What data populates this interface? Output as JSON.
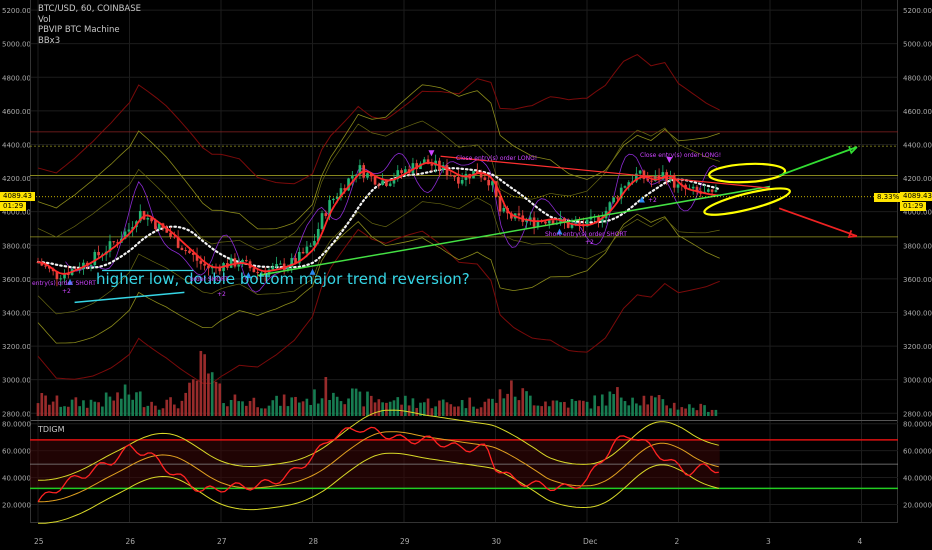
{
  "legend": {
    "symbol": "BTC/USD, 60, COINBASE",
    "vol": "Vol",
    "strategy": "PBVIP BTC Machine",
    "bands": "BBx3"
  },
  "oscillator": {
    "name": "TDIGM"
  },
  "annotations": {
    "main": "higher low, double bottom major trend reversion?",
    "close_long_1": "Close entry(s) order LONG!",
    "close_long_2": "Close entry(s) order LONG!",
    "short_1": "entry(s) order SHORT",
    "short_2": "Short entry(s) order SHORT",
    "short_3": "order SHORT",
    "plus2_a": "+2",
    "plus2_b": "+2",
    "plus2_c": "+2",
    "plus2_d": "+2"
  },
  "price_badges": {
    "last_price": "4089.43",
    "countdown_right": "01:29",
    "countdown_left": "01:29",
    "left_price": "4089.43",
    "pct": "8.33%"
  },
  "colors": {
    "background": "#000000",
    "grid": "#1c1c1c",
    "bull": "#22b573",
    "bear": "#e8413c",
    "fast_ma": "#ff2a2a",
    "slow_ma": "#f2f2f2",
    "band_outer": "#7a0a0a",
    "band_mid": "#8a8a1a",
    "trend_support": "#44e044",
    "trend_resist": "#ff3030",
    "annotation": "#36d6e6",
    "ellipse": "#ffff00",
    "arrow_up": "#33dd33",
    "arrow_down": "#ee2222",
    "osc_rsi": "#ff2222",
    "osc_band": "#d8d828",
    "osc_mid": "#e0a020",
    "osc_upper_level": "#dd1111",
    "osc_lower_level": "#22cc22"
  },
  "chart_data": {
    "type": "candlestick",
    "title": "BTC/USD, 60, COINBASE",
    "x_ticks": [
      "25",
      "26",
      "27",
      "28",
      "29",
      "30",
      "Dec",
      "2",
      "3",
      "4"
    ],
    "price_axis": {
      "ticks": [
        5200,
        5000,
        4800,
        4600,
        4400,
        4200,
        4000,
        3800,
        3600,
        3400,
        3200,
        3000,
        2800
      ],
      "tick_labels": [
        "5200.00",
        "5000.00",
        "4800.00",
        "4600.00",
        "4400.00",
        "4200.00",
        "4000.00",
        "3800.00",
        "3600.00",
        "3400.00",
        "3200.00",
        "3000.00",
        "2800.00"
      ],
      "range": [
        2760,
        5260
      ]
    },
    "oscillator_axis": {
      "ticks": [
        80,
        60,
        40,
        20
      ],
      "tick_labels": [
        "80.0000",
        "60.0000",
        "40.0000",
        "20.0000"
      ],
      "range": [
        7,
        82
      ],
      "levels": [
        68,
        50,
        32
      ]
    },
    "close_path": [
      [
        0,
        3700
      ],
      [
        0.2,
        3620
      ],
      [
        0.4,
        3660
      ],
      [
        0.6,
        3720
      ],
      [
        0.8,
        3800
      ],
      [
        1.0,
        3900
      ],
      [
        1.1,
        4000
      ],
      [
        1.2,
        3960
      ],
      [
        1.4,
        3880
      ],
      [
        1.6,
        3780
      ],
      [
        1.8,
        3680
      ],
      [
        1.9,
        3660
      ],
      [
        2.0,
        3680
      ],
      [
        2.2,
        3700
      ],
      [
        2.4,
        3640
      ],
      [
        2.6,
        3660
      ],
      [
        2.8,
        3700
      ],
      [
        3.0,
        3800
      ],
      [
        3.1,
        3960
      ],
      [
        3.2,
        4060
      ],
      [
        3.35,
        4160
      ],
      [
        3.5,
        4260
      ],
      [
        3.65,
        4200
      ],
      [
        3.8,
        4180
      ],
      [
        4.0,
        4240
      ],
      [
        4.2,
        4300
      ],
      [
        4.4,
        4260
      ],
      [
        4.6,
        4200
      ],
      [
        4.8,
        4240
      ],
      [
        4.95,
        4180
      ],
      [
        5.05,
        4000
      ],
      [
        5.2,
        3960
      ],
      [
        5.4,
        3940
      ],
      [
        5.6,
        3960
      ],
      [
        5.8,
        3920
      ],
      [
        6.0,
        3920
      ],
      [
        6.2,
        4000
      ],
      [
        6.4,
        4160
      ],
      [
        6.55,
        4220
      ],
      [
        6.7,
        4180
      ],
      [
        6.85,
        4230
      ],
      [
        7.0,
        4140
      ],
      [
        7.15,
        4120
      ],
      [
        7.3,
        4100
      ],
      [
        7.45,
        4095
      ]
    ],
    "volume_profile": [
      [
        0,
        0.35
      ],
      [
        0.3,
        0.25
      ],
      [
        0.7,
        0.3
      ],
      [
        1.0,
        0.45
      ],
      [
        1.3,
        0.25
      ],
      [
        1.6,
        0.28
      ],
      [
        1.8,
        1.0
      ],
      [
        2.0,
        0.4
      ],
      [
        2.3,
        0.3
      ],
      [
        2.6,
        0.28
      ],
      [
        3.0,
        0.35
      ],
      [
        3.2,
        0.6
      ],
      [
        3.5,
        0.35
      ],
      [
        4.0,
        0.3
      ],
      [
        4.5,
        0.25
      ],
      [
        5.0,
        0.3
      ],
      [
        5.1,
        0.55
      ],
      [
        5.5,
        0.3
      ],
      [
        6.0,
        0.25
      ],
      [
        6.4,
        0.45
      ],
      [
        7.0,
        0.2
      ],
      [
        7.4,
        0.15
      ]
    ],
    "oscillator_rsi": [
      [
        0,
        22
      ],
      [
        0.3,
        36
      ],
      [
        0.5,
        42
      ],
      [
        0.8,
        52
      ],
      [
        1.0,
        62
      ],
      [
        1.2,
        58
      ],
      [
        1.5,
        42
      ],
      [
        1.8,
        30
      ],
      [
        2.1,
        33
      ],
      [
        2.4,
        34
      ],
      [
        2.7,
        40
      ],
      [
        3.0,
        55
      ],
      [
        3.2,
        70
      ],
      [
        3.5,
        77
      ],
      [
        3.8,
        72
      ],
      [
        4.0,
        68
      ],
      [
        4.3,
        68
      ],
      [
        4.6,
        62
      ],
      [
        4.9,
        62
      ],
      [
        5.0,
        48
      ],
      [
        5.2,
        38
      ],
      [
        5.5,
        34
      ],
      [
        5.8,
        32
      ],
      [
        6.0,
        38
      ],
      [
        6.3,
        66
      ],
      [
        6.5,
        72
      ],
      [
        6.7,
        62
      ],
      [
        6.9,
        52
      ],
      [
        7.1,
        44
      ],
      [
        7.3,
        48
      ],
      [
        7.45,
        46
      ]
    ],
    "price_levels": [
      4475,
      4390,
      4215,
      3850
    ],
    "candle_count": 180
  }
}
